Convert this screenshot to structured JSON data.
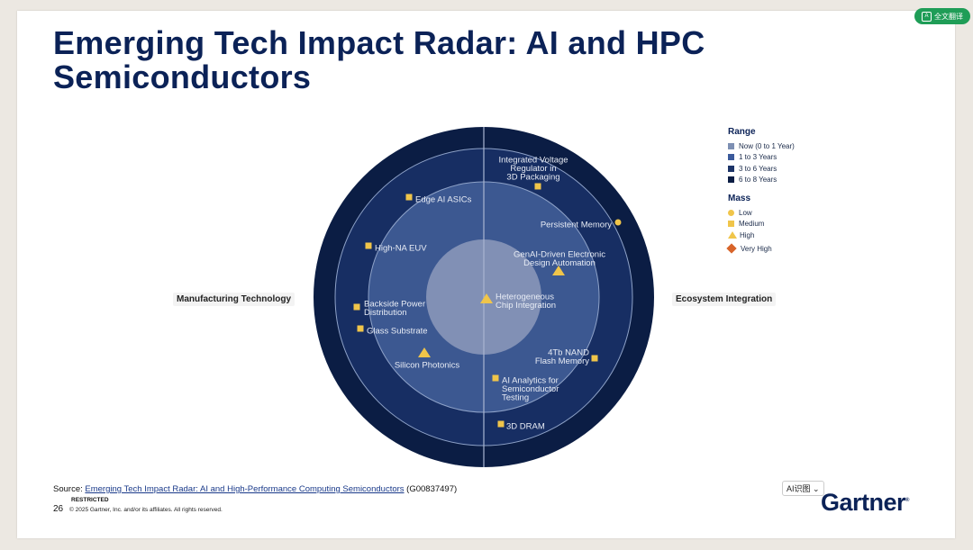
{
  "title": {
    "line1": "Emerging Tech Impact Radar: AI and HPC",
    "line2": "Semiconductors"
  },
  "axes": {
    "left": "Manufacturing Technology",
    "right": "Ecosystem Integration"
  },
  "legend": {
    "range_title": "Range",
    "range_items": [
      {
        "label": "Now (0 to 1 Year)",
        "color": "#7d8fb3"
      },
      {
        "label": "1 to 3 Years",
        "color": "#3b5a9b"
      },
      {
        "label": "3 to 6 Years",
        "color": "#1c3468"
      },
      {
        "label": "6 to 8 Years",
        "color": "#0b1d44"
      }
    ],
    "mass_title": "Mass",
    "mass_items": [
      {
        "label": "Low",
        "shape": "circle",
        "color": "#f0c54a"
      },
      {
        "label": "Medium",
        "shape": "square",
        "color": "#f0c54a"
      },
      {
        "label": "High",
        "shape": "triangle",
        "color": "#f0c54a"
      },
      {
        "label": "Very High",
        "shape": "diamond",
        "color": "#d8642a"
      }
    ]
  },
  "technologies": [
    {
      "lines": [
        "Integrated Voltage",
        "Regulator in",
        "3D Packaging"
      ],
      "mass": "medium"
    },
    {
      "lines": [
        "Edge AI ASICs"
      ],
      "mass": "medium"
    },
    {
      "lines": [
        "Persistent Memory"
      ],
      "mass": "low"
    },
    {
      "lines": [
        "High-NA EUV"
      ],
      "mass": "medium"
    },
    {
      "lines": [
        "GenAI-Driven Electronic",
        "Design Automation"
      ],
      "mass": "high"
    },
    {
      "lines": [
        "Heterogeneous",
        "Chip Integration"
      ],
      "mass": "high"
    },
    {
      "lines": [
        "Backside Power",
        "Distribution"
      ],
      "mass": "medium"
    },
    {
      "lines": [
        "Glass Substrate"
      ],
      "mass": "medium"
    },
    {
      "lines": [
        "Silicon Photonics"
      ],
      "mass": "high"
    },
    {
      "lines": [
        "4Tb NAND",
        "Flash Memory"
      ],
      "mass": "medium"
    },
    {
      "lines": [
        "AI Analytics for",
        "Semiconductor",
        "Testing"
      ],
      "mass": "medium"
    },
    {
      "lines": [
        "3D DRAM"
      ],
      "mass": "medium"
    }
  ],
  "footer": {
    "source_prefix": "Source: ",
    "source_link": "Emerging Tech Impact Radar: AI and High-Performance Computing Semiconductors",
    "source_id": " (G00837497)",
    "restricted": "RESTRICTED",
    "page_number": "26",
    "copyright": "© 2025 Gartner, Inc. and/or its affiliates. All rights reserved.",
    "logo": "Gartner",
    "logo_mark": "®",
    "ai_chip": "AI识图 ⌄"
  },
  "translate_button": "全文翻译"
}
